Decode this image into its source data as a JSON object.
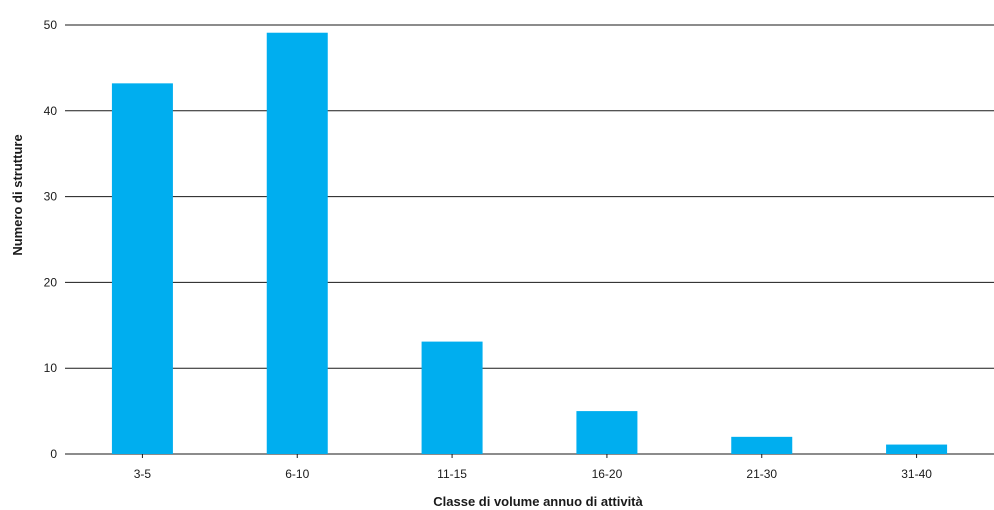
{
  "chart_data": {
    "type": "bar",
    "title": "",
    "xlabel": "Classe di volume annuo di attività",
    "ylabel": "Numero di strutture",
    "categories": [
      "3-5",
      "6-10",
      "11-15",
      "16-20",
      "21-30",
      "31-40"
    ],
    "values": [
      43.2,
      49.1,
      13.1,
      5.0,
      2.0,
      1.1
    ],
    "ylim": [
      0,
      50
    ],
    "yticks": [
      "0",
      "10",
      "20",
      "30",
      "40",
      "50"
    ],
    "grid": true,
    "bar_color": "#00aeef"
  }
}
